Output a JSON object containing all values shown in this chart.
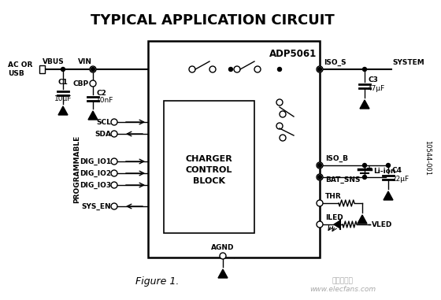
{
  "title": "TYPICAL APPLICATION CIRCUIT",
  "chip_label": "ADP5061",
  "block_label": [
    "CHARGER",
    "CONTROL",
    "BLOCK"
  ],
  "figure_label": "Figure 1.",
  "doc_number": "10544-001",
  "bg_color": "#ffffff",
  "fg_color": "#000000",
  "title_fontsize": 13,
  "small_fontsize": 6.5
}
